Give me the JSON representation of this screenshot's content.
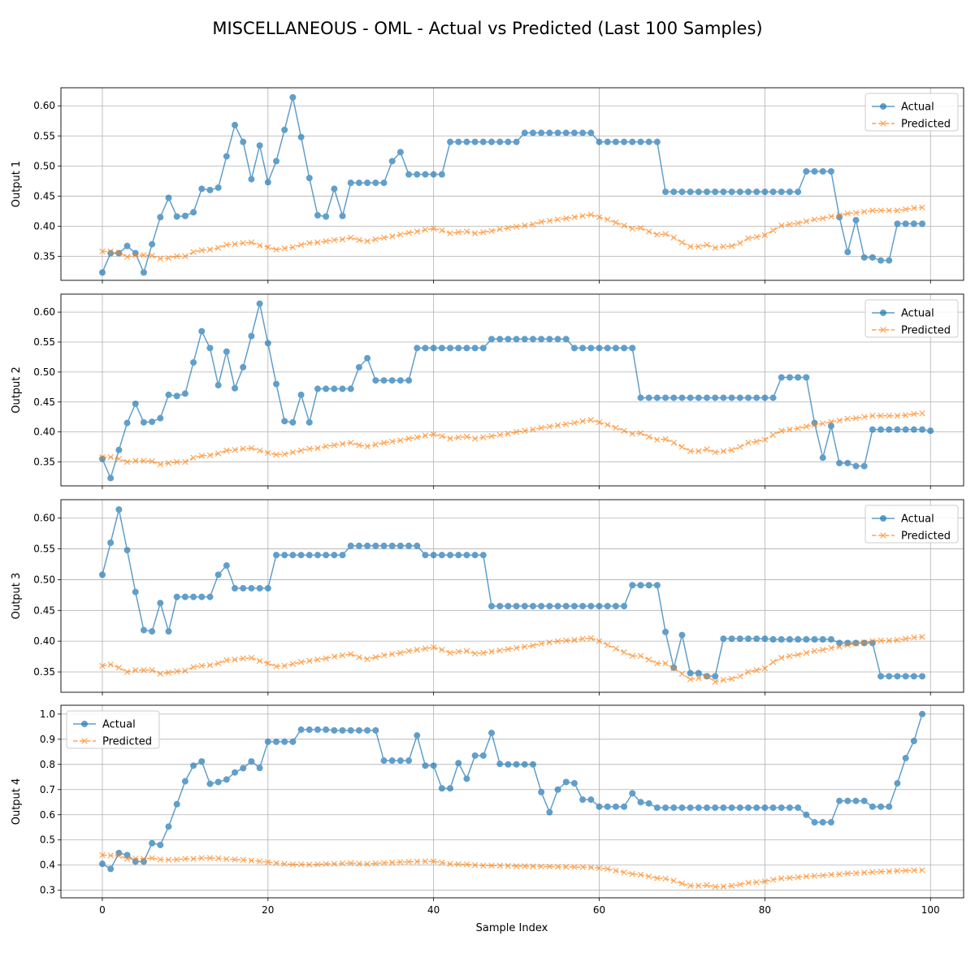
{
  "figure": {
    "title": "MISCELLANEOUS - OML - Actual vs Predicted (Last 100 Samples)",
    "xlabel": "Sample Index"
  },
  "colors": {
    "actual": "#1f77b4",
    "predicted": "#ff7f0e",
    "grid": "#b0b0b0"
  },
  "chart_data": [
    {
      "type": "line",
      "ylabel": "Output 1",
      "xlim": [
        -5,
        104
      ],
      "ylim": [
        0.31,
        0.63
      ],
      "xticks": [
        0,
        20,
        40,
        60,
        80,
        100
      ],
      "yticks": [
        0.35,
        0.4,
        0.45,
        0.5,
        0.55,
        0.6
      ],
      "ytick_decimals": 2,
      "show_xticklabels": false,
      "legend": "upper-right",
      "grid": true,
      "series": [
        {
          "name": "Actual",
          "marker": "circle",
          "values": [
            0.323,
            0.355,
            0.355,
            0.367,
            0.355,
            0.323,
            0.37,
            0.415,
            0.447,
            0.416,
            0.417,
            0.423,
            0.462,
            0.46,
            0.464,
            0.516,
            0.568,
            0.54,
            0.478,
            0.534,
            0.473,
            0.508,
            0.56,
            0.614,
            0.548,
            0.48,
            0.418,
            0.416,
            0.462,
            0.417,
            0.472,
            0.472,
            0.472,
            0.472,
            0.472,
            0.508,
            0.523,
            0.486,
            0.486,
            0.486,
            0.486,
            0.486,
            0.54,
            0.54,
            0.54,
            0.54,
            0.54,
            0.54,
            0.54,
            0.54,
            0.54,
            0.555,
            0.555,
            0.555,
            0.555,
            0.555,
            0.555,
            0.555,
            0.555,
            0.555,
            0.54,
            0.54,
            0.54,
            0.54,
            0.54,
            0.54,
            0.54,
            0.54,
            0.457,
            0.457,
            0.457,
            0.457,
            0.457,
            0.457,
            0.457,
            0.457,
            0.457,
            0.457,
            0.457,
            0.457,
            0.457,
            0.457,
            0.457,
            0.457,
            0.457,
            0.491,
            0.491,
            0.491,
            0.491,
            0.415,
            0.357,
            0.41,
            0.348,
            0.348,
            0.343,
            0.343,
            0.404,
            0.404,
            0.404,
            0.404
          ]
        },
        {
          "name": "Predicted",
          "marker": "x",
          "values": [
            0.358,
            0.358,
            0.356,
            0.349,
            0.352,
            0.352,
            0.351,
            0.346,
            0.347,
            0.35,
            0.35,
            0.357,
            0.36,
            0.361,
            0.364,
            0.369,
            0.37,
            0.372,
            0.373,
            0.368,
            0.365,
            0.361,
            0.363,
            0.365,
            0.369,
            0.372,
            0.373,
            0.375,
            0.377,
            0.378,
            0.381,
            0.377,
            0.375,
            0.378,
            0.381,
            0.383,
            0.386,
            0.389,
            0.391,
            0.394,
            0.396,
            0.393,
            0.388,
            0.39,
            0.391,
            0.388,
            0.39,
            0.392,
            0.395,
            0.397,
            0.399,
            0.401,
            0.403,
            0.407,
            0.409,
            0.411,
            0.413,
            0.415,
            0.417,
            0.419,
            0.415,
            0.411,
            0.406,
            0.401,
            0.396,
            0.397,
            0.391,
            0.386,
            0.387,
            0.381,
            0.373,
            0.366,
            0.366,
            0.369,
            0.364,
            0.366,
            0.367,
            0.372,
            0.38,
            0.382,
            0.385,
            0.393,
            0.401,
            0.403,
            0.405,
            0.408,
            0.411,
            0.413,
            0.416,
            0.418,
            0.421,
            0.422,
            0.424,
            0.426,
            0.426,
            0.426,
            0.426,
            0.428,
            0.43,
            0.431
          ]
        }
      ]
    },
    {
      "type": "line",
      "ylabel": "Output 2",
      "xlim": [
        -5,
        104
      ],
      "ylim": [
        0.31,
        0.63
      ],
      "xticks": [
        0,
        20,
        40,
        60,
        80,
        100
      ],
      "yticks": [
        0.35,
        0.4,
        0.45,
        0.5,
        0.55,
        0.6
      ],
      "ytick_decimals": 2,
      "show_xticklabels": false,
      "legend": "upper-right",
      "grid": true,
      "series": [
        {
          "name": "Actual",
          "marker": "circle",
          "values": [
            0.355,
            0.323,
            0.37,
            0.415,
            0.447,
            0.416,
            0.417,
            0.423,
            0.462,
            0.46,
            0.464,
            0.516,
            0.568,
            0.54,
            0.478,
            0.534,
            0.473,
            0.508,
            0.56,
            0.614,
            0.548,
            0.48,
            0.418,
            0.416,
            0.462,
            0.416,
            0.472,
            0.472,
            0.472,
            0.472,
            0.472,
            0.508,
            0.523,
            0.486,
            0.486,
            0.486,
            0.486,
            0.486,
            0.54,
            0.54,
            0.54,
            0.54,
            0.54,
            0.54,
            0.54,
            0.54,
            0.54,
            0.555,
            0.555,
            0.555,
            0.555,
            0.555,
            0.555,
            0.555,
            0.555,
            0.555,
            0.555,
            0.54,
            0.54,
            0.54,
            0.54,
            0.54,
            0.54,
            0.54,
            0.54,
            0.457,
            0.457,
            0.457,
            0.457,
            0.457,
            0.457,
            0.457,
            0.457,
            0.457,
            0.457,
            0.457,
            0.457,
            0.457,
            0.457,
            0.457,
            0.457,
            0.457,
            0.491,
            0.491,
            0.491,
            0.491,
            0.415,
            0.357,
            0.41,
            0.348,
            0.348,
            0.343,
            0.343,
            0.404,
            0.404,
            0.404,
            0.404,
            0.404,
            0.404,
            0.404,
            0.402
          ]
        },
        {
          "name": "Predicted",
          "marker": "x",
          "values": [
            0.358,
            0.358,
            0.355,
            0.35,
            0.352,
            0.352,
            0.351,
            0.346,
            0.348,
            0.35,
            0.35,
            0.357,
            0.36,
            0.361,
            0.364,
            0.369,
            0.37,
            0.372,
            0.373,
            0.369,
            0.365,
            0.362,
            0.363,
            0.366,
            0.369,
            0.372,
            0.373,
            0.376,
            0.378,
            0.38,
            0.382,
            0.378,
            0.376,
            0.379,
            0.382,
            0.384,
            0.386,
            0.389,
            0.391,
            0.394,
            0.396,
            0.393,
            0.389,
            0.391,
            0.392,
            0.389,
            0.391,
            0.393,
            0.395,
            0.397,
            0.4,
            0.402,
            0.404,
            0.407,
            0.409,
            0.411,
            0.413,
            0.415,
            0.418,
            0.42,
            0.416,
            0.412,
            0.407,
            0.402,
            0.397,
            0.398,
            0.392,
            0.387,
            0.388,
            0.382,
            0.375,
            0.368,
            0.368,
            0.371,
            0.366,
            0.368,
            0.37,
            0.375,
            0.382,
            0.384,
            0.387,
            0.395,
            0.402,
            0.404,
            0.406,
            0.409,
            0.412,
            0.414,
            0.417,
            0.419,
            0.422,
            0.423,
            0.425,
            0.427,
            0.427,
            0.427,
            0.427,
            0.428,
            0.43,
            0.431
          ]
        }
      ]
    },
    {
      "type": "line",
      "ylabel": "Output 3",
      "xlim": [
        -5,
        104
      ],
      "ylim": [
        0.317,
        0.63
      ],
      "xticks": [
        0,
        20,
        40,
        60,
        80,
        100
      ],
      "yticks": [
        0.35,
        0.4,
        0.45,
        0.5,
        0.55,
        0.6
      ],
      "ytick_decimals": 2,
      "show_xticklabels": false,
      "legend": "upper-right",
      "grid": true,
      "series": [
        {
          "name": "Actual",
          "marker": "circle",
          "values": [
            0.508,
            0.56,
            0.614,
            0.548,
            0.48,
            0.418,
            0.416,
            0.462,
            0.416,
            0.472,
            0.472,
            0.472,
            0.472,
            0.472,
            0.508,
            0.523,
            0.486,
            0.486,
            0.486,
            0.486,
            0.486,
            0.54,
            0.54,
            0.54,
            0.54,
            0.54,
            0.54,
            0.54,
            0.54,
            0.54,
            0.555,
            0.555,
            0.555,
            0.555,
            0.555,
            0.555,
            0.555,
            0.555,
            0.555,
            0.54,
            0.54,
            0.54,
            0.54,
            0.54,
            0.54,
            0.54,
            0.54,
            0.457,
            0.457,
            0.457,
            0.457,
            0.457,
            0.457,
            0.457,
            0.457,
            0.457,
            0.457,
            0.457,
            0.457,
            0.457,
            0.457,
            0.457,
            0.457,
            0.457,
            0.491,
            0.491,
            0.491,
            0.491,
            0.415,
            0.357,
            0.41,
            0.348,
            0.348,
            0.343,
            0.343,
            0.404,
            0.404,
            0.404,
            0.404,
            0.404,
            0.404,
            0.403,
            0.403,
            0.403,
            0.403,
            0.403,
            0.403,
            0.403,
            0.403,
            0.397,
            0.397,
            0.397,
            0.397,
            0.397,
            0.343,
            0.343,
            0.343,
            0.343,
            0.343,
            0.343
          ]
        },
        {
          "name": "Predicted",
          "marker": "x",
          "values": [
            0.36,
            0.362,
            0.357,
            0.35,
            0.353,
            0.353,
            0.353,
            0.347,
            0.349,
            0.351,
            0.352,
            0.358,
            0.36,
            0.361,
            0.364,
            0.369,
            0.37,
            0.372,
            0.373,
            0.368,
            0.364,
            0.359,
            0.36,
            0.363,
            0.366,
            0.368,
            0.37,
            0.372,
            0.375,
            0.377,
            0.379,
            0.374,
            0.371,
            0.374,
            0.377,
            0.379,
            0.381,
            0.384,
            0.386,
            0.388,
            0.39,
            0.386,
            0.381,
            0.383,
            0.384,
            0.38,
            0.381,
            0.383,
            0.385,
            0.387,
            0.389,
            0.391,
            0.393,
            0.396,
            0.398,
            0.4,
            0.401,
            0.402,
            0.404,
            0.405,
            0.4,
            0.394,
            0.388,
            0.382,
            0.376,
            0.376,
            0.37,
            0.364,
            0.364,
            0.356,
            0.347,
            0.338,
            0.34,
            0.343,
            0.334,
            0.337,
            0.339,
            0.343,
            0.35,
            0.353,
            0.356,
            0.366,
            0.373,
            0.376,
            0.378,
            0.381,
            0.384,
            0.386,
            0.389,
            0.391,
            0.394,
            0.396,
            0.398,
            0.4,
            0.401,
            0.401,
            0.402,
            0.404,
            0.406,
            0.407
          ]
        }
      ]
    },
    {
      "type": "line",
      "ylabel": "Output 4",
      "xlim": [
        -5,
        104
      ],
      "ylim": [
        0.27,
        1.035
      ],
      "xticks": [
        0,
        20,
        40,
        60,
        80,
        100
      ],
      "yticks": [
        0.3,
        0.4,
        0.5,
        0.6,
        0.7,
        0.8,
        0.9,
        1.0
      ],
      "ytick_decimals": 1,
      "show_xticklabels": true,
      "legend": "upper-left",
      "grid": true,
      "series": [
        {
          "name": "Actual",
          "marker": "circle",
          "values": [
            0.405,
            0.385,
            0.448,
            0.44,
            0.414,
            0.414,
            0.487,
            0.48,
            0.553,
            0.642,
            0.733,
            0.795,
            0.812,
            0.723,
            0.73,
            0.74,
            0.768,
            0.785,
            0.812,
            0.786,
            0.89,
            0.89,
            0.89,
            0.89,
            0.938,
            0.938,
            0.938,
            0.938,
            0.935,
            0.935,
            0.935,
            0.935,
            0.935,
            0.935,
            0.815,
            0.815,
            0.815,
            0.815,
            0.915,
            0.795,
            0.795,
            0.705,
            0.705,
            0.805,
            0.743,
            0.835,
            0.835,
            0.925,
            0.802,
            0.8,
            0.8,
            0.8,
            0.8,
            0.69,
            0.61,
            0.7,
            0.73,
            0.725,
            0.66,
            0.66,
            0.632,
            0.632,
            0.632,
            0.632,
            0.685,
            0.65,
            0.645,
            0.628,
            0.628,
            0.628,
            0.628,
            0.628,
            0.628,
            0.628,
            0.628,
            0.628,
            0.628,
            0.628,
            0.628,
            0.628,
            0.628,
            0.628,
            0.628,
            0.628,
            0.628,
            0.6,
            0.57,
            0.57,
            0.57,
            0.655,
            0.655,
            0.655,
            0.655,
            0.632,
            0.632,
            0.632,
            0.725,
            0.825,
            0.893,
            1.0
          ]
        },
        {
          "name": "Predicted",
          "marker": "x",
          "values": [
            0.44,
            0.438,
            0.437,
            0.425,
            0.426,
            0.425,
            0.428,
            0.422,
            0.421,
            0.422,
            0.425,
            0.425,
            0.428,
            0.428,
            0.427,
            0.424,
            0.422,
            0.421,
            0.418,
            0.415,
            0.412,
            0.408,
            0.405,
            0.403,
            0.403,
            0.402,
            0.403,
            0.405,
            0.405,
            0.407,
            0.408,
            0.406,
            0.405,
            0.407,
            0.409,
            0.41,
            0.412,
            0.413,
            0.414,
            0.415,
            0.415,
            0.41,
            0.405,
            0.404,
            0.403,
            0.4,
            0.398,
            0.398,
            0.398,
            0.397,
            0.396,
            0.396,
            0.395,
            0.394,
            0.394,
            0.393,
            0.393,
            0.392,
            0.392,
            0.391,
            0.388,
            0.385,
            0.378,
            0.371,
            0.365,
            0.362,
            0.355,
            0.348,
            0.346,
            0.338,
            0.327,
            0.318,
            0.318,
            0.32,
            0.314,
            0.315,
            0.318,
            0.323,
            0.33,
            0.332,
            0.335,
            0.342,
            0.347,
            0.349,
            0.352,
            0.355,
            0.357,
            0.359,
            0.362,
            0.364,
            0.367,
            0.368,
            0.37,
            0.372,
            0.374,
            0.375,
            0.377,
            0.378,
            0.379,
            0.38
          ]
        }
      ]
    }
  ]
}
